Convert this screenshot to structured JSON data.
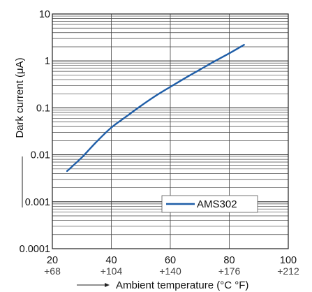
{
  "chart_data": {
    "type": "line",
    "xlabel": "Ambient temperature (°C °F)",
    "ylabel": "Dark current (μA)",
    "xlim": [
      20,
      100
    ],
    "ylim": [
      0.0001,
      10
    ],
    "y_scale": "log",
    "grid": true,
    "legend_position": "lower-right",
    "x_ticks": [
      {
        "c": "20",
        "f": "+68"
      },
      {
        "c": "40",
        "f": "+104"
      },
      {
        "c": "60",
        "f": "+140"
      },
      {
        "c": "80",
        "f": "+176"
      },
      {
        "c": "100",
        "f": "+212"
      }
    ],
    "y_ticks": [
      {
        "value": 10,
        "label": "10"
      },
      {
        "value": 1,
        "label": "1"
      },
      {
        "value": 0.1,
        "label": "0.1"
      },
      {
        "value": 0.01,
        "label": "0.01"
      },
      {
        "value": 0.001,
        "label": "0.001"
      },
      {
        "value": 0.0001,
        "label": "0.0001"
      }
    ],
    "series": [
      {
        "name": "AMS302",
        "color": "#1f5ea8",
        "x": [
          25,
          30,
          35,
          40,
          45,
          50,
          55,
          60,
          65,
          70,
          75,
          80,
          85
        ],
        "y": [
          0.0045,
          0.0088,
          0.019,
          0.038,
          0.065,
          0.11,
          0.18,
          0.28,
          0.43,
          0.65,
          0.98,
          1.45,
          2.2
        ]
      }
    ]
  }
}
